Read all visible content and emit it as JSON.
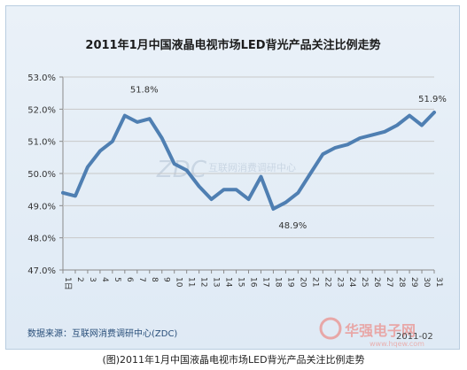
{
  "chart_data": {
    "type": "line",
    "title": "2011年1月中国液晶电视市场LED背光产品关注比例走势",
    "categories": [
      "1日",
      "2",
      "3",
      "4",
      "5",
      "6",
      "7",
      "8",
      "9",
      "10",
      "11",
      "12",
      "13",
      "14",
      "15",
      "16",
      "17",
      "18",
      "19",
      "20",
      "21",
      "22",
      "23",
      "24",
      "25",
      "26",
      "27",
      "28",
      "29",
      "30",
      "31"
    ],
    "values": [
      49.4,
      49.3,
      50.2,
      50.7,
      51.0,
      51.8,
      51.6,
      51.7,
      51.1,
      50.3,
      50.1,
      49.6,
      49.2,
      49.5,
      49.5,
      49.2,
      49.9,
      48.9,
      49.1,
      49.4,
      50.0,
      50.6,
      50.8,
      50.9,
      51.1,
      51.2,
      51.3,
      51.5,
      51.8,
      51.5,
      51.9
    ],
    "ylim": [
      47.0,
      53.0
    ],
    "yticks": [
      "47.0%",
      "48.0%",
      "49.0%",
      "50.0%",
      "51.0%",
      "52.0%",
      "53.0%"
    ],
    "grid": true,
    "line_color": "#4f7fb2",
    "annotations": [
      {
        "index": 5,
        "label": "51.8%"
      },
      {
        "index": 17,
        "label": "48.9%"
      },
      {
        "index": 30,
        "label": "51.9%"
      }
    ]
  },
  "watermark": {
    "logo": "ZDC",
    "text": "互联网消费调研中心"
  },
  "source": "数据来源：互联网消费调研中心(ZDC)",
  "date": "2011-02",
  "site": {
    "name": "华强电子网",
    "url": "www.hqew.com"
  },
  "caption": "(图)2011年1月中国液晶电视市场LED背光产品关注比例走势"
}
